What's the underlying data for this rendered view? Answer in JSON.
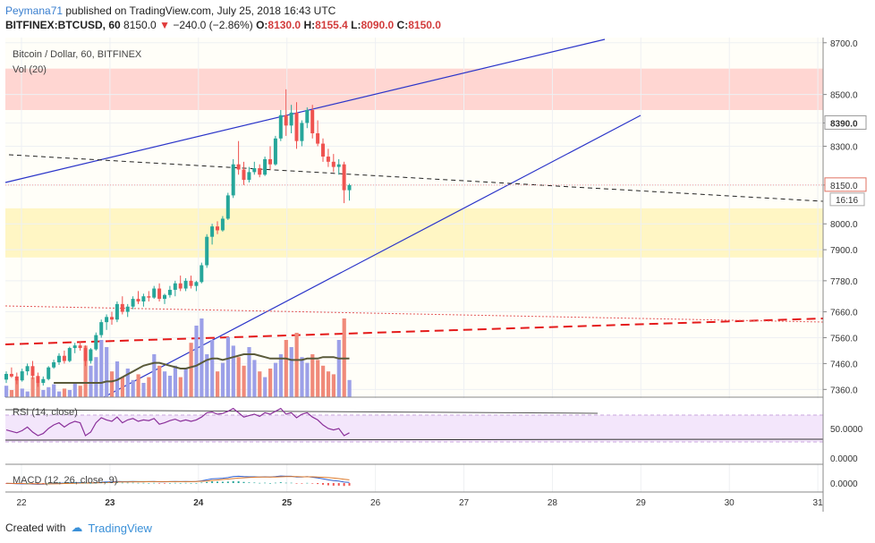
{
  "header": {
    "author": "Peymana71",
    "published_text": " published on TradingView.com, July 25, 2018 16:43 UTC",
    "symbol": "BITFINEX:BTCUSD, 60",
    "last": "8150.0",
    "change_arrow": "▼",
    "change": "−240.0 (−2.86%)",
    "o_label": "O:",
    "o_value": "8130.0",
    "h_label": "H:",
    "h_value": "8155.4",
    "l_label": "L:",
    "l_value": "8090.0",
    "c_label": "C:",
    "c_value": "8150.0"
  },
  "footer": {
    "created_with": "Created with",
    "logo_text": "TradingView"
  },
  "colors": {
    "up": "#26a69a",
    "down": "#ef5350",
    "volume_up": "#9ca0e8",
    "volume_down": "#f08a7a",
    "trendline": "#2b35c9",
    "rsi": "#8a2f9a",
    "resistance_zone": "#ffd6d2",
    "support_zone": "#fff6c4"
  },
  "chart_data": {
    "type": "candlestick",
    "title": "Bitcoin / Dollar, 60, BITFINEX",
    "volume_label": "Vol (20)",
    "rsi_label": "RSI (14, close)",
    "macd_label": "MACD (12, 26, close, 9)",
    "price_ticks": [
      "8700.0",
      "8500.0",
      "8390.0",
      "8300.0",
      "8150.0",
      "8000.0",
      "7900.0",
      "7780.0",
      "7660.0",
      "7560.0",
      "7460.0",
      "7360.0"
    ],
    "price_tick_values": [
      8700,
      8500,
      8390,
      8300,
      8150,
      8000,
      7900,
      7780,
      7660,
      7560,
      7460,
      7360
    ],
    "price_highlight": "8390.0",
    "last_price_label": "8150.0",
    "countdown_label": "16:16",
    "rsi_ticks": [
      "50.0000",
      "0.0000"
    ],
    "macd_ticks": [
      "0.0000"
    ],
    "x_ticks": [
      "22",
      "23",
      "24",
      "25",
      "26",
      "27",
      "28",
      "29",
      "30",
      "31"
    ],
    "ylim": [
      7330,
      8720
    ],
    "resistance_zone": [
      8440,
      8600
    ],
    "support_zone": [
      7870,
      8060
    ],
    "candles": [
      [
        7398,
        7430,
        7385,
        7420
      ],
      [
        7420,
        7445,
        7405,
        7410
      ],
      [
        7410,
        7425,
        7380,
        7395
      ],
      [
        7395,
        7440,
        7390,
        7430
      ],
      [
        7430,
        7460,
        7415,
        7450
      ],
      [
        7450,
        7470,
        7400,
        7412
      ],
      [
        7412,
        7425,
        7370,
        7385
      ],
      [
        7385,
        7410,
        7375,
        7400
      ],
      [
        7400,
        7450,
        7395,
        7445
      ],
      [
        7445,
        7475,
        7440,
        7465
      ],
      [
        7465,
        7500,
        7455,
        7490
      ],
      [
        7490,
        7510,
        7460,
        7470
      ],
      [
        7470,
        7525,
        7465,
        7520
      ],
      [
        7520,
        7540,
        7500,
        7530
      ],
      [
        7530,
        7545,
        7510,
        7520
      ],
      [
        7520,
        7530,
        7450,
        7470
      ],
      [
        7470,
        7520,
        7460,
        7515
      ],
      [
        7515,
        7580,
        7510,
        7570
      ],
      [
        7570,
        7630,
        7560,
        7620
      ],
      [
        7620,
        7650,
        7590,
        7640
      ],
      [
        7640,
        7660,
        7610,
        7630
      ],
      [
        7630,
        7700,
        7620,
        7690
      ],
      [
        7690,
        7720,
        7650,
        7660
      ],
      [
        7660,
        7690,
        7640,
        7680
      ],
      [
        7680,
        7720,
        7670,
        7710
      ],
      [
        7710,
        7740,
        7690,
        7700
      ],
      [
        7700,
        7730,
        7680,
        7720
      ],
      [
        7720,
        7740,
        7700,
        7715
      ],
      [
        7715,
        7760,
        7710,
        7750
      ],
      [
        7750,
        7770,
        7700,
        7710
      ],
      [
        7710,
        7730,
        7690,
        7725
      ],
      [
        7725,
        7760,
        7715,
        7745
      ],
      [
        7745,
        7780,
        7720,
        7770
      ],
      [
        7770,
        7800,
        7740,
        7750
      ],
      [
        7750,
        7790,
        7740,
        7780
      ],
      [
        7780,
        7800,
        7750,
        7760
      ],
      [
        7760,
        7780,
        7740,
        7775
      ],
      [
        7775,
        7850,
        7770,
        7840
      ],
      [
        7840,
        7960,
        7830,
        7950
      ],
      [
        7950,
        8000,
        7920,
        7990
      ],
      [
        7990,
        8010,
        7960,
        7975
      ],
      [
        7975,
        8030,
        7970,
        8020
      ],
      [
        8020,
        8120,
        8015,
        8110
      ],
      [
        8110,
        8250,
        8100,
        8230
      ],
      [
        8230,
        8320,
        8190,
        8210
      ],
      [
        8210,
        8240,
        8150,
        8170
      ],
      [
        8170,
        8220,
        8160,
        8200
      ],
      [
        8200,
        8240,
        8190,
        8215
      ],
      [
        8215,
        8230,
        8180,
        8190
      ],
      [
        8190,
        8260,
        8185,
        8250
      ],
      [
        8250,
        8300,
        8210,
        8230
      ],
      [
        8230,
        8340,
        8225,
        8330
      ],
      [
        8330,
        8440,
        8320,
        8420
      ],
      [
        8420,
        8520,
        8340,
        8380
      ],
      [
        8380,
        8460,
        8350,
        8430
      ],
      [
        8430,
        8470,
        8290,
        8320
      ],
      [
        8320,
        8400,
        8300,
        8390
      ],
      [
        8390,
        8450,
        8370,
        8440
      ],
      [
        8440,
        8460,
        8330,
        8350
      ],
      [
        8350,
        8400,
        8300,
        8310
      ],
      [
        8310,
        8330,
        8240,
        8260
      ],
      [
        8260,
        8290,
        8220,
        8240
      ],
      [
        8240,
        8270,
        8200,
        8220
      ],
      [
        8220,
        8250,
        8190,
        8230
      ],
      [
        8230,
        8240,
        8080,
        8130
      ],
      [
        8130,
        8155,
        8090,
        8150
      ]
    ],
    "volumes": [
      8,
      5,
      12,
      6,
      4,
      14,
      10,
      5,
      7,
      9,
      4,
      6,
      5,
      10,
      8,
      36,
      22,
      28,
      40,
      35,
      18,
      25,
      14,
      20,
      12,
      16,
      10,
      14,
      30,
      22,
      18,
      15,
      22,
      14,
      20,
      38,
      50,
      55,
      30,
      40,
      18,
      24,
      42,
      36,
      28,
      22,
      35,
      26,
      18,
      14,
      20,
      24,
      30,
      40,
      35,
      45,
      28,
      24,
      30,
      26,
      22,
      18,
      16,
      40,
      55,
      12
    ],
    "volume_ma": [
      10,
      10,
      10,
      10,
      10,
      10,
      10,
      10,
      10,
      10,
      11,
      11,
      12,
      14,
      16,
      18,
      20,
      22,
      23,
      24,
      24,
      23,
      22,
      21,
      20,
      20,
      21,
      22,
      24,
      26,
      27,
      27,
      26,
      27,
      28,
      29,
      30,
      30,
      30,
      29,
      28,
      27,
      27,
      27,
      27,
      26,
      26,
      26,
      27,
      27,
      27,
      28,
      28,
      28,
      27,
      27,
      27
    ],
    "rsi": [
      48,
      46,
      44,
      47,
      52,
      45,
      40,
      43,
      50,
      55,
      58,
      52,
      57,
      60,
      58,
      40,
      45,
      58,
      65,
      62,
      60,
      66,
      58,
      62,
      64,
      60,
      62,
      61,
      64,
      56,
      58,
      61,
      63,
      60,
      62,
      60,
      62,
      66,
      72,
      73,
      70,
      71,
      74,
      78,
      72,
      66,
      68,
      70,
      67,
      72,
      70,
      74,
      78,
      70,
      72,
      65,
      70,
      72,
      66,
      62,
      55,
      50,
      48,
      50,
      40,
      44
    ],
    "macd": [
      -2,
      -3,
      -4,
      -5,
      -4,
      -6,
      -8,
      -7,
      -5,
      -3,
      -1,
      0,
      1,
      2,
      3,
      1,
      0,
      2,
      5,
      7,
      8,
      10,
      9,
      9,
      10,
      9,
      9,
      9,
      10,
      8,
      8,
      9,
      10,
      9,
      10,
      9,
      10,
      14,
      20,
      26,
      28,
      30,
      34,
      40,
      42,
      40,
      39,
      39,
      38,
      39,
      38,
      40,
      44,
      42,
      42,
      38,
      38,
      40,
      36,
      32,
      26,
      20,
      15,
      12,
      6,
      4
    ],
    "macd_signal": [
      -1,
      -2,
      -3,
      -3,
      -4,
      -4,
      -5,
      -5,
      -5,
      -5,
      -4,
      -3,
      -2,
      -1,
      0,
      0,
      0,
      1,
      2,
      3,
      4,
      6,
      7,
      7,
      8,
      8,
      8,
      9,
      9,
      9,
      9,
      9,
      9,
      9,
      9,
      9,
      10,
      11,
      13,
      16,
      19,
      22,
      25,
      28,
      31,
      33,
      35,
      36,
      37,
      37,
      38,
      38,
      39,
      40,
      40,
      40,
      39,
      39,
      39,
      38,
      36,
      34,
      31,
      28,
      24,
      20
    ]
  }
}
